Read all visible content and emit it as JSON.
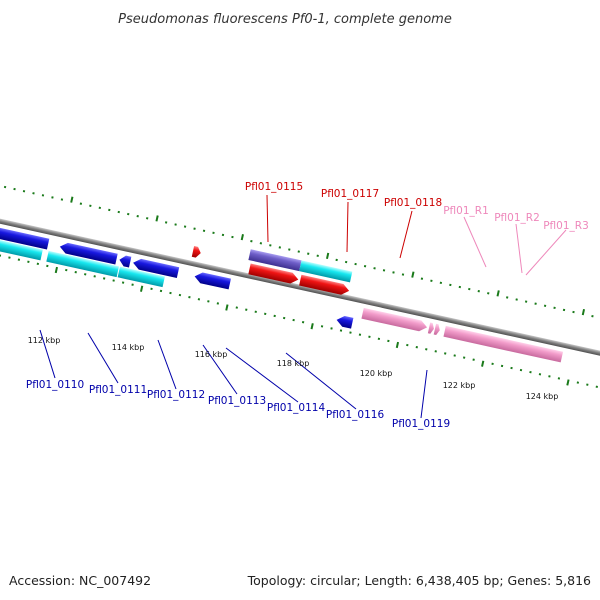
{
  "title": "Pseudomonas fluorescens Pf0-1, complete genome",
  "footer": {
    "accession": "Accession: NC_007492",
    "topology": "Topology: circular; Length: 6,438,405 bp; Genes: 5,816"
  },
  "colors": {
    "backbone": "#8a8a8a",
    "tick": "#1a7a1a",
    "blue_gene": "#1010d0",
    "cyan_gene": "#10e0ee",
    "red_gene": "#ee1010",
    "purple_gene": "#6e5ec8",
    "pink_gene": "#f08cc0",
    "gray_gene": "#707070",
    "blue_label": "#0000aa",
    "red_label": "#cc0000",
    "pink_label": "#ee88bb"
  },
  "ticks": {
    "labels": [
      "112 kbp",
      "114 kbp",
      "116 kbp",
      "118 kbp",
      "120 kbp",
      "122 kbp",
      "124 kbp"
    ]
  },
  "labels": {
    "top": [
      "Pfl01_0115",
      "Pfl01_0117",
      "Pfl01_0118"
    ],
    "rna": [
      "Pfl01_R1",
      "Pfl01_R2",
      "Pfl01_R3"
    ],
    "bottom": [
      "Pfl01_0110",
      "Pfl01_0111",
      "Pfl01_0112",
      "Pfl01_0113",
      "Pfl01_0114",
      "Pfl01_0116",
      "Pfl01_0119"
    ]
  }
}
